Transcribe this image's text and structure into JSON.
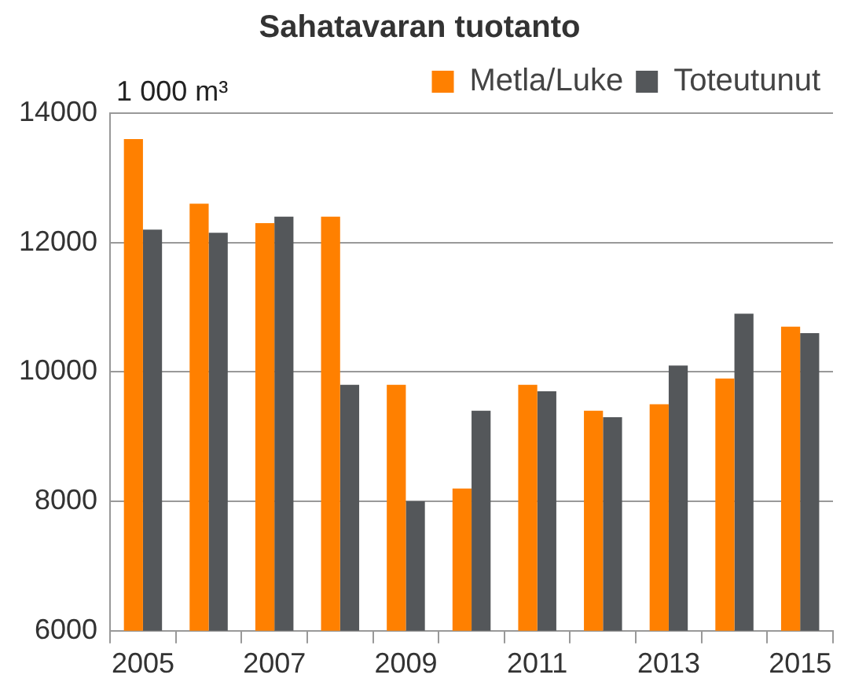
{
  "chart_data": {
    "type": "bar",
    "title": "Sahatavaran tuotanto",
    "ylabel": "1 000 m³",
    "categories": [
      "2005",
      null,
      "2007",
      null,
      "2009",
      null,
      "2011",
      null,
      "2013",
      null,
      "2015"
    ],
    "series": [
      {
        "name": "Metla/Luke",
        "color": "#ff8000",
        "values": [
          13600,
          12600,
          12300,
          12400,
          9800,
          8200,
          9800,
          9400,
          9500,
          9900,
          10700
        ]
      },
      {
        "name": "Toteutunut",
        "color": "#54575a",
        "values": [
          12200,
          12150,
          12400,
          9800,
          8000,
          9400,
          9700,
          9300,
          10100,
          10900,
          10600
        ]
      }
    ],
    "ylim": [
      6000,
      14000
    ],
    "yticks": [
      6000,
      8000,
      10000,
      12000,
      14000
    ],
    "grid": "y",
    "legend": "top right"
  }
}
